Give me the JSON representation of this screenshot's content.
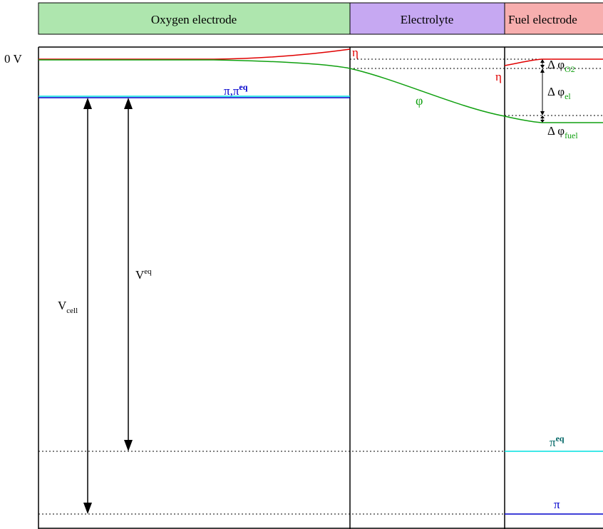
{
  "headers": {
    "oxygen": "Oxygen electrode",
    "electrolyte": "Electrolyte",
    "fuel": "Fuel electrode"
  },
  "header_colors": {
    "oxygen": "#aee6ae",
    "electrolyte": "#c6a8f2",
    "fuel": "#f7aeae"
  },
  "line_colors": {
    "eta": "#e00000",
    "phi": "#10a010",
    "pi": "#0000cc",
    "pi_eq": "#00e0e0",
    "arrows": "#000000"
  },
  "labels": {
    "zero_volt": "0 V",
    "eta_left": "η",
    "eta_right": "η",
    "phi": "φ",
    "pi_pi_eq": "π,π",
    "pi_pi_eq_sup": "eq",
    "pi_eq_right": "π",
    "pi_eq_right_sup": "eq",
    "pi_right": "π",
    "v_eq": "V",
    "v_eq_sup": "eq",
    "v_cell": "V",
    "v_cell_sub": "cell",
    "dphi_o2": "Δ φ",
    "dphi_o2_sub": "O2",
    "dphi_el": "Δ φ",
    "dphi_el_sub": "el",
    "dphi_fuel": "Δ φ",
    "dphi_fuel_sub": "fuel"
  }
}
